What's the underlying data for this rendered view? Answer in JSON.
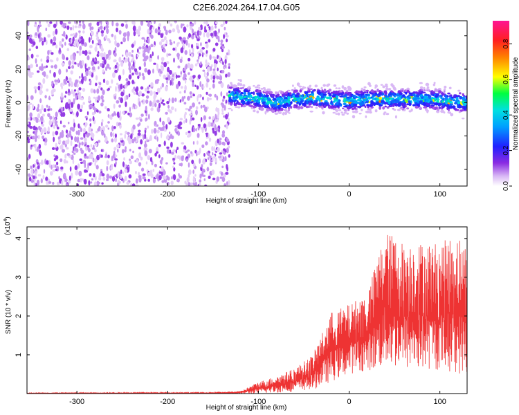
{
  "title": "C2E6.2024.264.17.04.G05",
  "colors": {
    "snr_line": "#ee3333",
    "background": "#ffffff",
    "axes": "#000000"
  },
  "chart_data": [
    {
      "type": "heatmap",
      "name": "spectrogram",
      "title": "C2E6.2024.264.17.04.G05",
      "xlabel": "Height of straight line (km)",
      "ylabel": "Frequency (Hz)",
      "xlim": [
        -355,
        130
      ],
      "ylim": [
        -50,
        49
      ],
      "xticks": [
        -300,
        -200,
        -100,
        0,
        100
      ],
      "yticks": [
        -40,
        -20,
        0,
        20,
        40
      ],
      "colorbar": {
        "label": "Normalized spectral amplitude",
        "range": [
          0,
          0.93
        ],
        "ticks": [
          0.0,
          0.2,
          0.4,
          0.6,
          0.8
        ],
        "tick_labels": [
          "0.0",
          "0.2",
          "0.4",
          "0.6",
          "0.8"
        ]
      },
      "regions": [
        {
          "desc": "broadband noise",
          "x_range": [
            -355,
            -132
          ],
          "y_range": [
            -50,
            49
          ],
          "amplitude": [
            0.0,
            0.15
          ]
        },
        {
          "desc": "narrow signal band",
          "x_range": [
            -132,
            130
          ],
          "center_freq_hz": 2,
          "width_hz": 10,
          "amplitude": [
            0.1,
            0.8
          ]
        }
      ],
      "centerline": [
        {
          "x": -132,
          "y": 4
        },
        {
          "x": -110,
          "y": 3
        },
        {
          "x": -80,
          "y": 0
        },
        {
          "x": -60,
          "y": 2
        },
        {
          "x": -40,
          "y": 3
        },
        {
          "x": -20,
          "y": 2
        },
        {
          "x": 0,
          "y": 1
        },
        {
          "x": 20,
          "y": 2
        },
        {
          "x": 50,
          "y": 2
        },
        {
          "x": 80,
          "y": 2
        },
        {
          "x": 110,
          "y": 1
        },
        {
          "x": 130,
          "y": 0
        }
      ]
    },
    {
      "type": "line",
      "name": "snr",
      "xlabel": "Height of straight line (km)",
      "ylabel": "SNR (10 * v/v)",
      "y_multiplier_label": "(x10",
      "y_multiplier_exp": "4",
      "y_multiplier_close": ")",
      "xlim": [
        -355,
        130
      ],
      "ylim": [
        0,
        4.3
      ],
      "xticks": [
        -300,
        -200,
        -100,
        0,
        100
      ],
      "yticks": [
        1,
        2,
        3,
        4
      ],
      "series": [
        {
          "name": "SNR",
          "color": "#ee3333",
          "envelope_x": [
            -355,
            -150,
            -120,
            -100,
            -80,
            -60,
            -40,
            -20,
            0,
            20,
            30,
            40,
            60,
            80,
            100,
            120,
            130
          ],
          "envelope_peak": [
            0.02,
            0.03,
            0.06,
            0.3,
            0.45,
            0.65,
            1.0,
            2.1,
            2.3,
            2.6,
            3.4,
            4.2,
            3.9,
            3.9,
            3.9,
            4.1,
            3.8
          ],
          "envelope_low": [
            0.0,
            0.0,
            0.0,
            0.0,
            0.02,
            0.05,
            0.1,
            0.3,
            0.5,
            0.6,
            0.6,
            0.7,
            0.6,
            0.6,
            0.6,
            0.5,
            0.5
          ]
        }
      ]
    }
  ]
}
